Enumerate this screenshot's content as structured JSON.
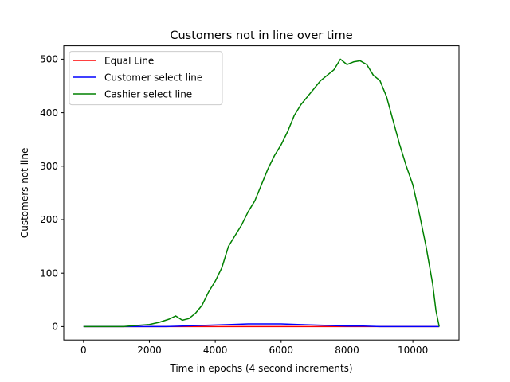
{
  "chart_data": {
    "type": "line",
    "title": "Customers not in line over time",
    "xlabel": "Time in epochs (4 second increments)",
    "ylabel": "Customers not line",
    "xlim": [
      -600,
      11400
    ],
    "ylim": [
      -25,
      525
    ],
    "x_ticks": [
      0,
      2000,
      4000,
      6000,
      8000,
      10000
    ],
    "y_ticks": [
      0,
      100,
      200,
      300,
      400,
      500
    ],
    "grid": false,
    "legend_position": "upper-left",
    "series": [
      {
        "name": "Equal Line",
        "color": "#ff0000",
        "x": [
          0,
          10800
        ],
        "y": [
          0,
          0
        ]
      },
      {
        "name": "Customer select line",
        "color": "#0000ff",
        "x": [
          0,
          2500,
          3000,
          3500,
          4000,
          4500,
          5000,
          5500,
          6000,
          6500,
          7000,
          7500,
          8000,
          8500,
          9000,
          10000,
          10800
        ],
        "y": [
          0,
          0,
          1,
          2,
          3,
          4,
          5,
          5,
          5,
          4,
          3,
          2,
          1,
          1,
          0,
          0,
          0
        ]
      },
      {
        "name": "Cashier select line",
        "color": "#008000",
        "x": [
          0,
          1200,
          1600,
          2000,
          2300,
          2600,
          2800,
          3000,
          3200,
          3400,
          3600,
          3800,
          4000,
          4200,
          4400,
          4600,
          4800,
          5000,
          5200,
          5400,
          5600,
          5800,
          6000,
          6200,
          6400,
          6600,
          6800,
          7000,
          7200,
          7400,
          7600,
          7800,
          8000,
          8200,
          8400,
          8600,
          8800,
          9000,
          9200,
          9400,
          9600,
          9800,
          10000,
          10200,
          10400,
          10600,
          10700,
          10800
        ],
        "y": [
          0,
          0,
          2,
          4,
          8,
          14,
          20,
          12,
          15,
          25,
          40,
          65,
          85,
          110,
          150,
          170,
          190,
          215,
          235,
          265,
          295,
          320,
          340,
          365,
          395,
          415,
          430,
          445,
          460,
          470,
          480,
          500,
          490,
          495,
          497,
          490,
          470,
          460,
          430,
          385,
          340,
          300,
          265,
          210,
          150,
          80,
          30,
          0
        ]
      }
    ]
  }
}
